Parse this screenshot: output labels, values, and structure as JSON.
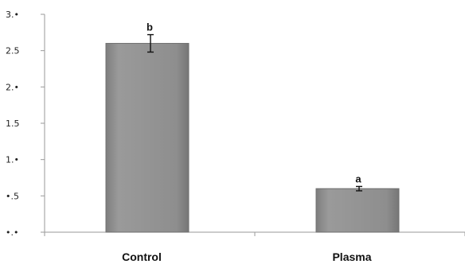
{
  "chart_data": {
    "type": "bar",
    "categories": [
      "Control",
      "Plasma"
    ],
    "values": [
      2.6,
      0.6
    ],
    "errors": [
      0.12,
      0.03
    ],
    "significance": [
      "b",
      "a"
    ],
    "ylim": [
      0,
      3.0
    ],
    "yticks": [
      0,
      0.5,
      1.0,
      1.5,
      2.0,
      2.5,
      3.0
    ],
    "ytick_labels": [
      "•.•",
      "•.5",
      "1.•",
      "1.5",
      "2.•",
      "2.5",
      "3.•"
    ],
    "title": "",
    "xlabel": "",
    "ylabel": "",
    "grid": false,
    "legend": "none",
    "colors": {
      "bar_fill": "#8c8c8c",
      "bar_stroke": "#6f6f6f",
      "axis": "#9a9a9a",
      "error_bar": "#111111"
    }
  }
}
